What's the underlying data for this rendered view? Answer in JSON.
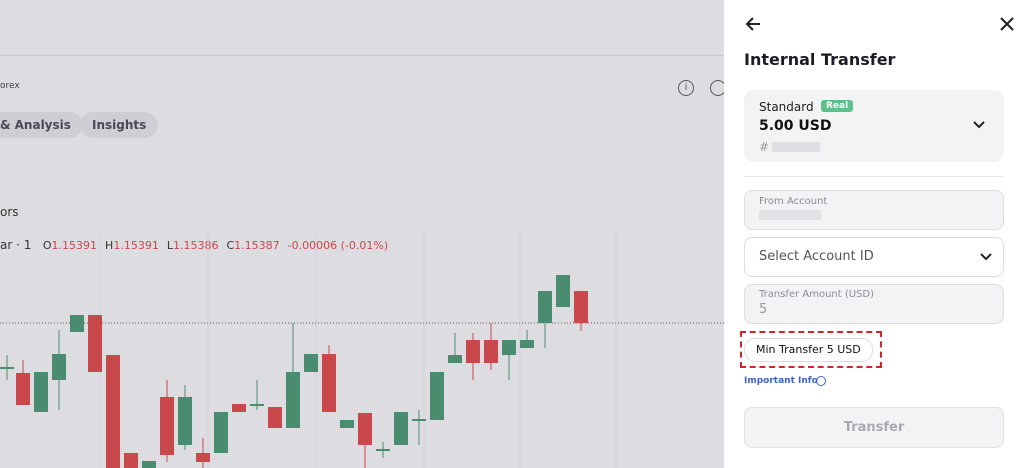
{
  "background": {
    "market": "orex",
    "tabs": [
      "& Analysis",
      "Insights"
    ],
    "section": "ors",
    "symbol": "ar · 1",
    "ohlc": [
      {
        "key": "O",
        "value": "1.15391"
      },
      {
        "key": "H",
        "value": "1.15391"
      },
      {
        "key": "L",
        "value": "1.15386"
      },
      {
        "key": "C",
        "value": "1.15387"
      }
    ],
    "change": "-0.00006 (-0.01%)"
  },
  "panel": {
    "title": "Internal Transfer",
    "account": {
      "type": "Standard",
      "badge": "Real",
      "balance": "5.00 USD",
      "id_prefix": "#"
    },
    "fields": {
      "from_account": "From Account",
      "select_account": "Select Account ID",
      "amount_label": "Transfer Amount (USD)",
      "amount_value": "5"
    },
    "min_transfer": "Min Transfer 5 USD",
    "important_info": "Important Info",
    "submit": "Transfer"
  }
}
